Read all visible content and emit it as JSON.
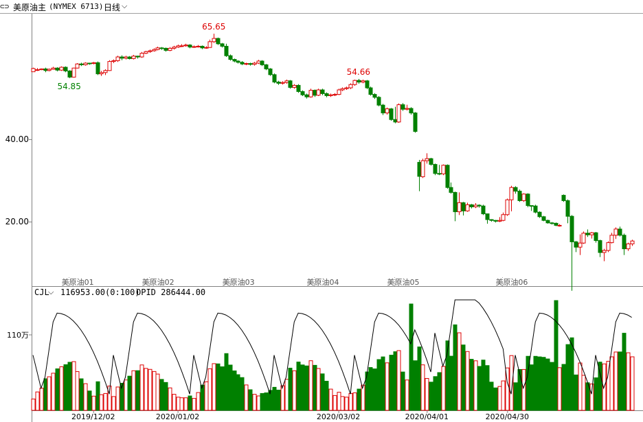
{
  "header": {
    "title": "美原油主",
    "code": "(NYMEX 6713)",
    "period": "日线",
    "link_icon": "link-icon",
    "dropdown_icon": "chevron-down-icon"
  },
  "colors": {
    "up": "#dd0000",
    "down": "#008000",
    "opid_line": "#000000",
    "grid": "#c0c0c0"
  },
  "indicator": {
    "name": "CJL",
    "value_text": "116953.00(0:100)",
    "opid_text": "OPID 286444.00",
    "axis_label": "110万"
  },
  "chart_data": {
    "type": "candlestick",
    "price_ticks": [
      20,
      40
    ],
    "price_tick_labels": [
      "20.00",
      "40.00"
    ],
    "annotations": [
      {
        "text": "65.65",
        "index": 45,
        "kind": "high"
      },
      {
        "text": "54.85",
        "index": 9,
        "kind": "low"
      },
      {
        "text": "54.66",
        "index": 81,
        "kind": "high"
      }
    ],
    "contract_labels": [
      {
        "text": "美原油01",
        "index": 9
      },
      {
        "text": "美原油02",
        "index": 29
      },
      {
        "text": "美原油03",
        "index": 49
      },
      {
        "text": "美原油04",
        "index": 70
      },
      {
        "text": "美原油05",
        "index": 90
      },
      {
        "text": "美原油06",
        "index": 117
      }
    ],
    "date_labels": [
      {
        "text": "2019/12/02",
        "index": 15
      },
      {
        "text": "2020/01/02",
        "index": 36
      },
      {
        "text": "2020/03/02",
        "index": 76
      },
      {
        "text": "2020/04/01",
        "index": 98
      },
      {
        "text": "2020/04/30",
        "index": 118
      }
    ],
    "candles": [
      [
        56.4,
        57.2,
        56.9,
        57.4
      ],
      [
        56.9,
        56.9,
        56.6,
        57.3
      ],
      [
        56.9,
        57.1,
        56.8,
        57.2
      ],
      [
        57.1,
        56.7,
        56.3,
        57.4
      ],
      [
        56.7,
        57.0,
        56.5,
        57.2
      ],
      [
        57.0,
        57.3,
        56.9,
        57.6
      ],
      [
        57.3,
        56.8,
        56.5,
        57.5
      ],
      [
        56.8,
        57.5,
        56.6,
        57.7
      ],
      [
        57.5,
        56.6,
        56.3,
        57.7
      ],
      [
        56.6,
        55.1,
        54.85,
        56.8
      ],
      [
        55.1,
        57.3,
        55.0,
        57.4
      ],
      [
        57.3,
        58.3,
        57.2,
        58.5
      ],
      [
        58.3,
        58.1,
        57.8,
        58.6
      ],
      [
        58.1,
        58.5,
        57.9,
        58.7
      ],
      [
        58.5,
        58.4,
        58.1,
        58.6
      ],
      [
        58.4,
        58.6,
        58.2,
        58.8
      ],
      [
        58.6,
        55.9,
        55.6,
        58.9
      ],
      [
        55.9,
        56.2,
        55.4,
        56.6
      ],
      [
        56.2,
        56.7,
        55.6,
        57.0
      ],
      [
        56.7,
        58.9,
        56.6,
        59.2
      ],
      [
        58.9,
        59.1,
        58.5,
        59.4
      ],
      [
        59.1,
        60.0,
        58.8,
        60.3
      ],
      [
        60.0,
        59.7,
        59.2,
        60.4
      ],
      [
        59.7,
        60.0,
        59.4,
        60.3
      ],
      [
        60.0,
        59.6,
        59.4,
        60.2
      ],
      [
        59.6,
        60.2,
        59.4,
        60.5
      ],
      [
        60.2,
        60.0,
        59.6,
        60.3
      ],
      [
        60.0,
        60.9,
        59.8,
        61.2
      ],
      [
        60.9,
        61.3,
        60.7,
        61.5
      ],
      [
        61.3,
        61.5,
        61.0,
        61.8
      ],
      [
        61.5,
        61.8,
        61.3,
        62.1
      ],
      [
        61.8,
        62.2,
        61.6,
        62.5
      ],
      [
        62.2,
        62.1,
        61.7,
        62.4
      ],
      [
        62.1,
        61.6,
        61.3,
        62.3
      ],
      [
        61.6,
        62.1,
        61.4,
        62.4
      ],
      [
        62.1,
        62.4,
        61.8,
        62.7
      ],
      [
        62.4,
        62.7,
        62.2,
        63.0
      ],
      [
        62.7,
        62.7,
        62.4,
        63.1
      ],
      [
        62.7,
        62.9,
        62.5,
        63.2
      ],
      [
        62.9,
        62.4,
        62.1,
        63.1
      ],
      [
        62.4,
        62.5,
        62.2,
        62.8
      ],
      [
        62.5,
        62.6,
        62.3,
        62.9
      ],
      [
        62.6,
        62.2,
        61.9,
        62.8
      ],
      [
        62.2,
        62.3,
        62.0,
        62.6
      ],
      [
        62.3,
        63.7,
        62.2,
        64.2
      ],
      [
        63.7,
        64.5,
        63.4,
        65.65
      ],
      [
        64.5,
        63.2,
        62.9,
        64.7
      ],
      [
        63.2,
        62.6,
        62.3,
        63.4
      ],
      [
        62.6,
        60.3,
        60.0,
        63.2
      ],
      [
        60.3,
        59.4,
        59.1,
        60.6
      ],
      [
        59.4,
        59.0,
        58.7,
        59.6
      ],
      [
        59.0,
        58.7,
        58.4,
        59.2
      ],
      [
        58.7,
        58.3,
        58.0,
        59.0
      ],
      [
        58.3,
        58.4,
        58.0,
        58.6
      ],
      [
        58.4,
        58.2,
        57.9,
        58.6
      ],
      [
        58.2,
        58.5,
        57.9,
        58.8
      ],
      [
        58.5,
        59.0,
        58.3,
        59.3
      ],
      [
        59.0,
        58.1,
        57.8,
        59.2
      ],
      [
        58.1,
        57.1,
        56.8,
        58.3
      ],
      [
        57.1,
        55.7,
        55.4,
        57.3
      ],
      [
        55.7,
        53.9,
        53.6,
        56.0
      ],
      [
        53.9,
        53.6,
        53.2,
        54.2
      ],
      [
        53.6,
        53.8,
        53.3,
        54.1
      ],
      [
        53.8,
        54.2,
        53.5,
        54.5
      ],
      [
        54.2,
        52.6,
        52.3,
        54.4
      ],
      [
        52.6,
        53.1,
        52.3,
        53.4
      ],
      [
        53.1,
        51.6,
        51.3,
        53.4
      ],
      [
        51.6,
        50.8,
        50.5,
        51.9
      ],
      [
        50.8,
        50.3,
        49.9,
        51.1
      ],
      [
        50.3,
        51.9,
        50.1,
        52.3
      ],
      [
        51.9,
        50.7,
        50.3,
        52.1
      ],
      [
        50.7,
        52.0,
        50.5,
        52.3
      ],
      [
        52.0,
        51.1,
        50.7,
        52.3
      ],
      [
        51.1,
        50.6,
        50.2,
        51.4
      ],
      [
        50.6,
        50.8,
        50.3,
        51.1
      ],
      [
        50.8,
        50.9,
        50.5,
        51.2
      ],
      [
        50.9,
        52.0,
        50.7,
        52.3
      ],
      [
        52.0,
        52.3,
        51.7,
        52.6
      ],
      [
        52.3,
        52.5,
        52.0,
        52.8
      ],
      [
        52.5,
        53.3,
        52.2,
        53.6
      ],
      [
        53.3,
        54.3,
        53.0,
        54.5
      ],
      [
        54.3,
        53.9,
        53.5,
        54.66
      ],
      [
        53.9,
        54.2,
        53.6,
        54.5
      ],
      [
        54.2,
        52.5,
        52.2,
        54.4
      ],
      [
        52.5,
        50.9,
        50.6,
        52.8
      ],
      [
        50.9,
        50.2,
        49.8,
        51.2
      ],
      [
        50.2,
        48.3,
        48.0,
        50.5
      ],
      [
        48.3,
        46.4,
        45.9,
        48.6
      ],
      [
        46.4,
        47.4,
        46.0,
        47.7
      ],
      [
        47.4,
        44.8,
        44.5,
        47.6
      ],
      [
        44.8,
        44.2,
        43.9,
        47.9
      ],
      [
        44.2,
        48.4,
        44.0,
        48.7
      ],
      [
        48.4,
        47.3,
        46.9,
        48.8
      ],
      [
        47.3,
        47.5,
        47.0,
        48.4
      ],
      [
        47.5,
        46.4,
        46.0,
        47.8
      ],
      [
        46.4,
        41.9,
        41.6,
        46.6
      ],
      [
        34.4,
        31.0,
        27.4,
        35.0
      ],
      [
        30.9,
        34.8,
        30.6,
        35.3
      ],
      [
        34.8,
        35.3,
        34.1,
        36.6
      ],
      [
        35.3,
        33.9,
        33.6,
        35.5
      ],
      [
        33.9,
        31.7,
        31.3,
        34.1
      ],
      [
        31.7,
        31.6,
        31.3,
        33.8
      ],
      [
        31.6,
        33.7,
        31.3,
        33.9
      ],
      [
        33.7,
        28.3,
        28.0,
        33.9
      ],
      [
        28.3,
        27.1,
        26.8,
        29.5
      ],
      [
        27.1,
        22.4,
        20.1,
        27.3
      ],
      [
        22.4,
        24.6,
        21.6,
        27.1
      ],
      [
        24.6,
        22.6,
        21.5,
        24.8
      ],
      [
        22.6,
        24.1,
        22.4,
        24.6
      ],
      [
        24.1,
        23.6,
        23.2,
        24.3
      ],
      [
        23.6,
        24.0,
        23.3,
        24.5
      ],
      [
        24.0,
        23.8,
        23.4,
        24.2
      ],
      [
        23.8,
        21.9,
        21.6,
        24.1
      ],
      [
        21.9,
        20.5,
        19.5,
        21.9
      ],
      [
        20.5,
        20.3,
        20.0,
        20.6
      ],
      [
        20.3,
        20.1,
        19.8,
        20.4
      ],
      [
        20.1,
        20.3,
        19.9,
        21.1
      ],
      [
        20.3,
        21.7,
        20.1,
        22.2
      ],
      [
        21.7,
        25.3,
        21.4,
        25.6
      ],
      [
        25.3,
        28.3,
        22.5,
        28.7
      ],
      [
        28.3,
        27.4,
        26.8,
        28.6
      ],
      [
        27.4,
        25.1,
        24.8,
        27.8
      ],
      [
        25.1,
        26.7,
        24.8,
        26.9
      ],
      [
        26.7,
        23.9,
        23.5,
        26.9
      ],
      [
        23.9,
        23.8,
        22.6,
        23.9
      ],
      [
        23.8,
        22.3,
        22.0,
        24.1
      ],
      [
        22.3,
        21.2,
        20.9,
        22.5
      ],
      [
        21.2,
        20.3,
        20.1,
        21.4
      ],
      [
        20.3,
        19.7,
        19.5,
        20.5
      ],
      [
        19.7,
        19.6,
        19.3,
        19.9
      ],
      [
        19.6,
        19.1,
        18.9,
        19.8
      ],
      [
        19.1,
        19.1,
        18.8,
        19.4
      ],
      [
        26.4,
        25.1,
        24.8,
        26.6
      ],
      [
        25.1,
        21.3,
        19.6,
        25.4
      ],
      [
        21.3,
        15.1,
        3.2,
        21.6
      ],
      [
        15.1,
        13.8,
        12.6,
        15.3
      ],
      [
        13.8,
        14.8,
        11.9,
        16.9
      ],
      [
        14.8,
        17.2,
        14.6,
        17.6
      ],
      [
        17.2,
        16.8,
        16.3,
        18.1
      ],
      [
        16.8,
        17.3,
        15.9,
        17.5
      ],
      [
        17.3,
        15.4,
        14.9,
        17.5
      ],
      [
        15.4,
        12.5,
        11.4,
        15.6
      ],
      [
        12.5,
        13.0,
        10.4,
        13.4
      ],
      [
        13.0,
        14.9,
        12.6,
        15.2
      ],
      [
        14.9,
        16.7,
        14.7,
        17.3
      ],
      [
        16.7,
        18.2,
        15.8,
        18.6
      ],
      [
        18.2,
        16.7,
        16.4,
        18.8
      ],
      [
        16.7,
        13.4,
        11.9,
        17.1
      ],
      [
        13.4,
        14.6,
        12.9,
        14.9
      ],
      [
        14.6,
        15.3,
        14.1,
        15.6
      ]
    ],
    "volume_max": 1.65,
    "opid_max": 1.0
  }
}
